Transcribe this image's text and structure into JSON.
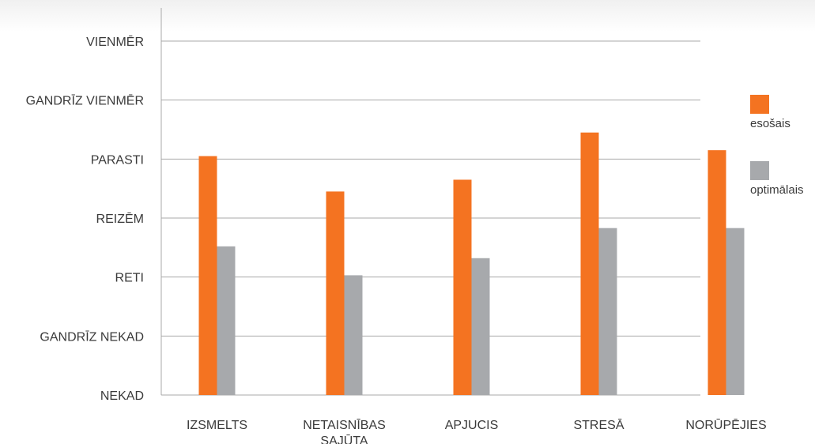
{
  "chart_data": {
    "type": "bar",
    "categories": [
      [
        "IZSMELTS"
      ],
      [
        "NETAISNĪBAS",
        "SAJŪTA"
      ],
      [
        "APJUCIS"
      ],
      [
        "STRESĀ"
      ],
      [
        "NORŪPĒJIES"
      ]
    ],
    "y_tick_labels": [
      "NEKAD",
      "GANDRĪZ NEKAD",
      "RETI",
      "REIZĒM",
      "PARASTI",
      "GANDRĪZ VIENMĒR",
      "VIENMĒR"
    ],
    "ylim": [
      0,
      6
    ],
    "grid": true,
    "legend_position": "right",
    "series": [
      {
        "name": "esošais",
        "color": "#f47321",
        "values": [
          4.05,
          3.45,
          3.65,
          4.45,
          4.15
        ]
      },
      {
        "name": "optimālais",
        "color": "#a7a9ac",
        "values": [
          2.52,
          2.03,
          2.32,
          2.83,
          2.83
        ]
      }
    ]
  }
}
